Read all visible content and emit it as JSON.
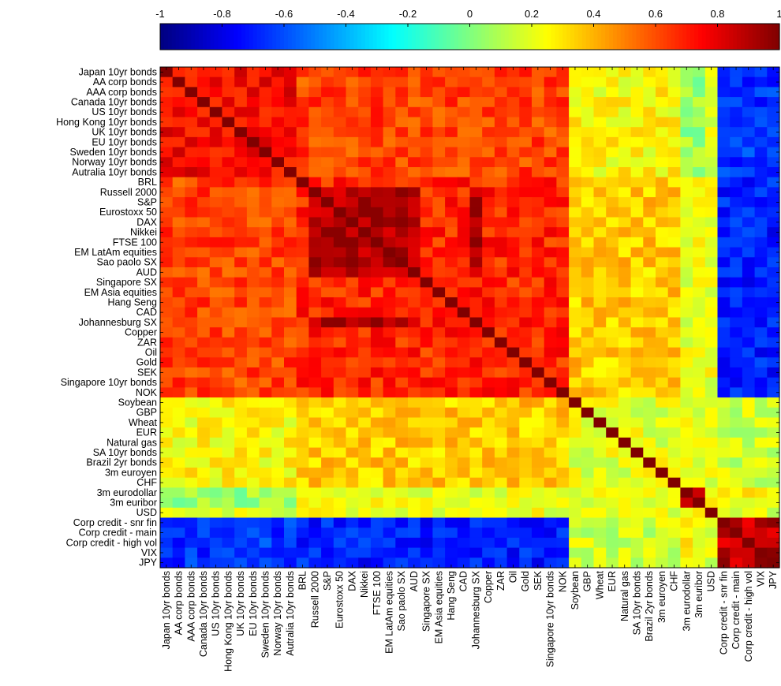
{
  "chart_data": {
    "type": "heatmap",
    "title": "",
    "labels": [
      "Japan 10yr bonds",
      "AA corp bonds",
      "AAA corp bonds",
      "Canada 10yr bonds",
      "US 10yr bonds",
      "Hong Kong 10yr bonds",
      "UK 10yr bonds",
      "EU 10yr bonds",
      "Sweden 10yr bonds",
      "Norway 10yr bonds",
      "Autralia 10yr bonds",
      "BRL",
      "Russell 2000",
      "S&P",
      "Eurostoxx 50",
      "DAX",
      "Nikkei",
      "FTSE 100",
      "EM LatAm equities",
      "Sao paolo SX",
      "AUD",
      "Singapore SX",
      "EM Asia equities",
      "Hang Seng",
      "CAD",
      "Johannesburg SX",
      "Copper",
      "ZAR",
      "Oil",
      "Gold",
      "SEK",
      "Singapore 10yr bonds",
      "NOK",
      "Soybean",
      "GBP",
      "Wheat",
      "EUR",
      "Natural gas",
      "SA 10yr bonds",
      "Brazil 2yr bonds",
      "3m euroyen",
      "CHF",
      "3m eurodollar",
      "3m euribor",
      "USD",
      "Corp credit - snr fin",
      "Corp credit - main",
      "Corp credit - high vol",
      "VIX",
      "JPY"
    ],
    "groups": {
      "bonds": [
        0,
        1,
        2,
        3,
        4,
        5,
        6,
        7,
        8,
        9,
        10
      ],
      "risk": [
        11,
        12,
        13,
        14,
        15,
        16,
        17,
        18,
        19,
        20,
        21,
        22,
        23,
        24,
        25,
        26,
        27,
        28,
        29,
        30,
        31,
        32
      ],
      "core_risk": [
        12,
        13,
        14,
        15,
        16,
        17,
        18,
        19,
        20,
        25
      ],
      "commodities_misc": [
        33,
        34,
        35,
        36,
        37,
        38,
        39,
        40,
        41
      ],
      "short_rates": [
        42,
        43
      ],
      "usd": [
        44
      ],
      "stress": [
        45,
        46,
        47,
        48,
        49
      ]
    },
    "block_correlations": {
      "bonds_bonds": 0.75,
      "bonds_risk": 0.62,
      "risk_risk": 0.68,
      "core_risk_core_risk": 0.9,
      "bonds_commodities_misc": 0.25,
      "risk_commodities_misc": 0.35,
      "commodities_misc_commodities_misc": 0.2,
      "bonds_short_rates": 0.05,
      "risk_short_rates": 0.2,
      "short_rates_short_rates": 0.92,
      "usd_others": 0.2,
      "bonds_stress": -0.65,
      "risk_stress": -0.7,
      "commodities_misc_stress": 0.15,
      "short_rates_stress": 0.25,
      "stress_stress": 0.88,
      "diagonal": 1.0
    },
    "colorbar": {
      "ticks": [
        -1,
        -0.8,
        -0.6,
        -0.4,
        -0.2,
        0,
        0.2,
        0.4,
        0.6,
        0.8,
        1
      ],
      "vmin": -1,
      "vmax": 1,
      "colormap": "jet"
    },
    "grid": false,
    "legend_position": "top"
  }
}
